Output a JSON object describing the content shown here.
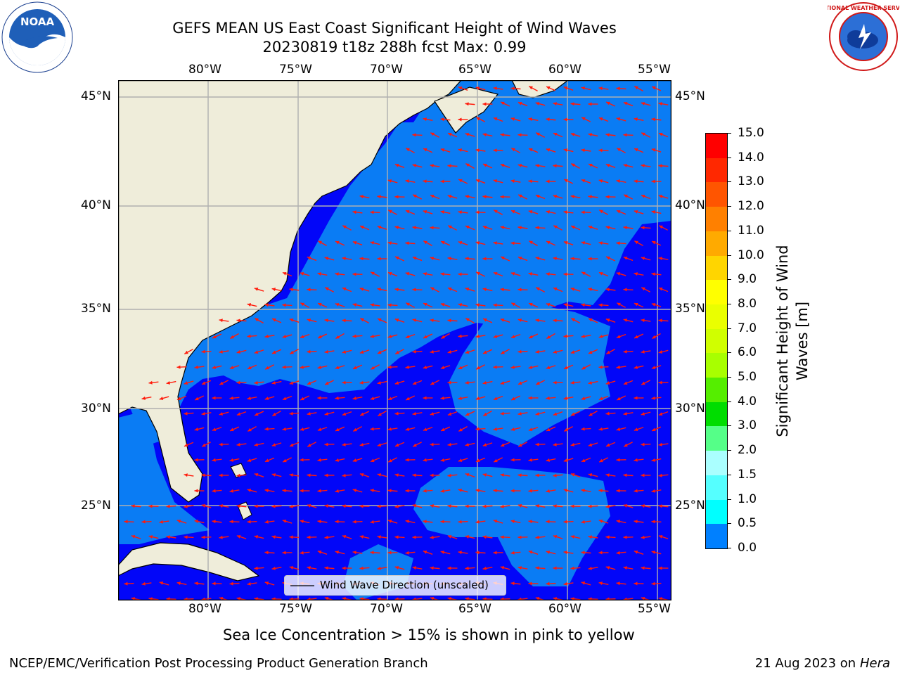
{
  "header": {
    "title_line1": "GEFS MEAN US East Coast Significant Height of Wind Waves",
    "title_line2": "20230819 t18z 288h fcst   Max: 0.99"
  },
  "logos": {
    "left": {
      "name": "noaa-logo",
      "text": "NOAA"
    },
    "right": {
      "name": "nws-logo",
      "text": "NATIONAL WEATHER SERVICE"
    }
  },
  "map": {
    "lon_labels": [
      "80°W",
      "75°W",
      "70°W",
      "65°W",
      "60°W",
      "55°W"
    ],
    "lat_labels": [
      "45°N",
      "40°N",
      "35°N",
      "30°N",
      "25°N"
    ],
    "legend_label": "Wind Wave Direction (unscaled)",
    "colors": {
      "land": "#efedda",
      "sea_light": "#0a7cf4",
      "sea_dark": "#0206f8",
      "arrow": "#ff1a0a",
      "grid": "#b0b0b0"
    }
  },
  "colorbar": {
    "label_line1": "Significant Height of Wind",
    "label_line2": "Waves [m]",
    "ticks": [
      "15.0",
      "14.0",
      "13.0",
      "12.0",
      "11.0",
      "10.0",
      "9.0",
      "8.0",
      "7.0",
      "6.0",
      "5.0",
      "4.0",
      "3.0",
      "2.0",
      "1.5",
      "1.0",
      "0.5",
      "0.0"
    ],
    "colors": [
      "#ff0000",
      "#ff2800",
      "#ff5500",
      "#ff8000",
      "#ffaa00",
      "#ffd500",
      "#ffff00",
      "#eaff00",
      "#d0ff00",
      "#a8ff00",
      "#55ee00",
      "#00dd00",
      "#55ff88",
      "#aaffff",
      "#55ffff",
      "#00ffff",
      "#0080ff",
      "#0000ff"
    ]
  },
  "footer": {
    "note": "Sea Ice Concentration > 15% is shown in pink to yellow",
    "credit": "NCEP/EMC/Verification Post Processing Product Generation Branch",
    "date": "21 Aug 2023 on",
    "machine": "Hera"
  }
}
